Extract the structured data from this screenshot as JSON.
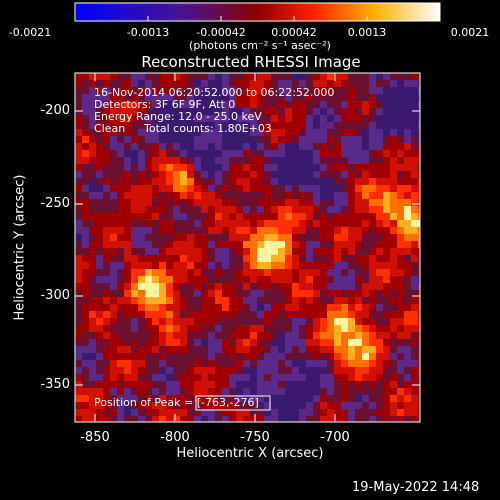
{
  "colorbar": {
    "ticks": [
      "-0.0021",
      "-0.0013",
      "-0.00042",
      "0.00042",
      "0.0013",
      "0.0021"
    ],
    "unit_label": "(photons cm⁻² s⁻¹ asec⁻²)"
  },
  "title": "Reconstructed RHESSI Image",
  "info": {
    "time_range": "16-Nov-2014 06:20:52.000 to 06:22:52.000",
    "detectors": "Detectors: 3F 6F 9F, Att 0",
    "energy": "Energy Range: 12.0 - 25.0 keV",
    "method": "Clean",
    "counts": "Total counts: 1.80E+03",
    "peak": "Position of Peak = [-763,-276]"
  },
  "axes": {
    "xlabel": "Heliocentric X (arcsec)",
    "ylabel": "Heliocentric Y (arcsec)",
    "xticks": [
      "-850",
      "-800",
      "-750",
      "-700"
    ],
    "yticks": [
      "-200",
      "-250",
      "-300",
      "-350"
    ]
  },
  "footer_timestamp": "19-May-2022 14:48"
}
